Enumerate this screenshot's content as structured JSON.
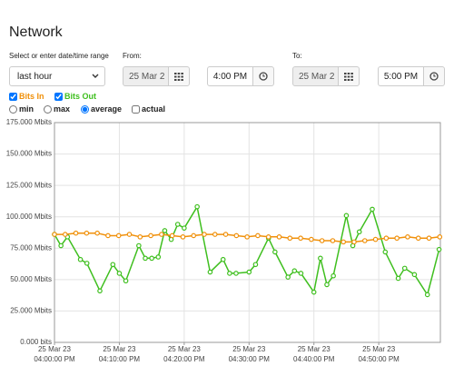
{
  "header": {
    "title": "Network"
  },
  "range": {
    "label": "Select or enter date/time range",
    "preset": "last hour",
    "from_label": "From:",
    "from_date": "25 Mar 2",
    "from_time": "4:00 PM",
    "to_label": "To:",
    "to_date": "25 Mar 2",
    "to_time": "5:00 PM"
  },
  "options": {
    "modes": [
      "min",
      "max",
      "average"
    ],
    "selected_mode": "average",
    "actual": "actual"
  },
  "chart_data": {
    "type": "line",
    "series": [
      {
        "name": "Bits In",
        "color": "#f0900a",
        "x": [
          0,
          1.65,
          3.3,
          4.95,
          6.6,
          8.25,
          9.9,
          11.55,
          13.2,
          14.85,
          16.5,
          18.15,
          19.8,
          21.45,
          23.1,
          24.75,
          26.4,
          28.05,
          29.7,
          31.35,
          33,
          34.65,
          36.3,
          37.95,
          39.6,
          41.25,
          42.9,
          44.55,
          46.2,
          47.85,
          49.5,
          51.15,
          52.8,
          54.45,
          56.1,
          57.75,
          59.4
        ],
        "values": [
          86,
          86,
          87,
          87,
          87,
          85,
          85,
          86,
          84,
          85,
          86,
          85,
          84,
          85,
          86,
          86,
          86,
          85,
          84,
          85,
          84,
          84,
          83,
          83,
          82,
          81,
          81,
          80,
          80,
          81,
          82,
          83,
          83,
          84,
          83,
          83,
          84
        ]
      },
      {
        "name": "Bits Out",
        "color": "#3fbf1f",
        "x": [
          0,
          1,
          2,
          4,
          5,
          7,
          9,
          10,
          11,
          13,
          14,
          15,
          16,
          17,
          18,
          19,
          20,
          22,
          24,
          26,
          27,
          28,
          30,
          31,
          33,
          34,
          36,
          37,
          38,
          40,
          41,
          42,
          43,
          45,
          46,
          47,
          49,
          51,
          53,
          54,
          55.5,
          57.5,
          59.3
        ],
        "values": [
          86,
          77,
          84,
          66,
          63,
          41,
          62,
          55,
          49,
          77,
          67,
          67,
          68,
          89,
          82,
          94,
          91,
          108,
          56,
          66,
          55,
          55,
          56,
          62,
          83,
          72,
          52,
          57,
          55,
          40,
          67,
          46,
          53,
          101,
          77,
          88,
          106,
          72,
          51,
          59,
          54,
          38,
          74
        ]
      }
    ],
    "xlim": [
      0,
      59.5
    ],
    "xticks": [
      {
        "value": 0,
        "label": "25 Mar 23\n04:00:00 PM"
      },
      {
        "value": 10,
        "label": "25 Mar 23\n04:10:00 PM"
      },
      {
        "value": 20,
        "label": "25 Mar 23\n04:20:00 PM"
      },
      {
        "value": 30,
        "label": "25 Mar 23\n04:30:00 PM"
      },
      {
        "value": 40,
        "label": "25 Mar 23\n04:40:00 PM"
      },
      {
        "value": 50,
        "label": "25 Mar 23\n04:50:00 PM"
      }
    ],
    "ylim": [
      0,
      175
    ],
    "yticks": [
      {
        "value": 0,
        "label": "0.000 bits"
      },
      {
        "value": 25,
        "label": "25.000 Mbits"
      },
      {
        "value": 50,
        "label": "50.000 Mbits"
      },
      {
        "value": 75,
        "label": "75.000 Mbits"
      },
      {
        "value": 100,
        "label": "100.000 Mbits"
      },
      {
        "value": 125,
        "label": "125.000 Mbits"
      },
      {
        "value": 150,
        "label": "150.000 Mbits"
      },
      {
        "value": 175,
        "label": "175.000 Mbits"
      }
    ],
    "grid": true
  }
}
